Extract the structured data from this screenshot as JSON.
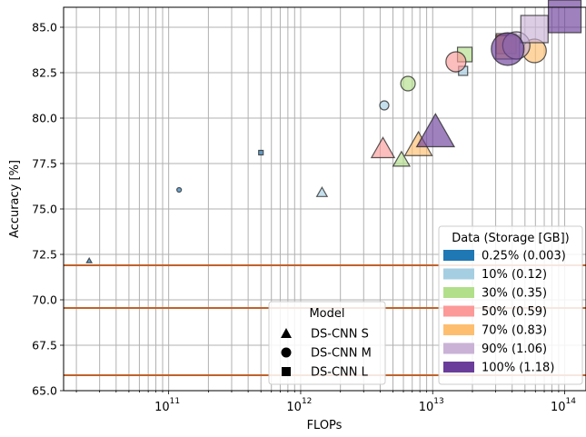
{
  "chart_data": {
    "type": "scatter",
    "x_scale": "log",
    "xlabel": "FLOPs",
    "ylabel": "Accuracy [%]",
    "xlim": [
      16000000000.0,
      145000000000000.0
    ],
    "ylim": [
      65.0,
      86.1
    ],
    "grid": true,
    "x_ticks": [
      {
        "value": 100000000000.0,
        "base": "10",
        "exp": "11"
      },
      {
        "value": 1000000000000.0,
        "base": "10",
        "exp": "12"
      },
      {
        "value": 10000000000000.0,
        "base": "10",
        "exp": "13"
      },
      {
        "value": 100000000000000.0,
        "base": "10",
        "exp": "14"
      }
    ],
    "y_ticks": [
      {
        "value": 65.0,
        "label": "65.0"
      },
      {
        "value": 67.5,
        "label": "67.5"
      },
      {
        "value": 70.0,
        "label": "70.0"
      },
      {
        "value": 72.5,
        "label": "72.5"
      },
      {
        "value": 75.0,
        "label": "75.0"
      },
      {
        "value": 77.5,
        "label": "77.5"
      },
      {
        "value": 80.0,
        "label": "80.0"
      },
      {
        "value": 82.5,
        "label": "82.5"
      },
      {
        "value": 85.0,
        "label": "85.0"
      }
    ],
    "hlines": [
      71.9,
      69.55,
      65.85
    ],
    "hline_color": "#c0622a",
    "data_legend": {
      "title": "Data (Storage [GB])",
      "placement": "lower-right",
      "entries": [
        {
          "label": "0.25% (0.003)",
          "color": "#1f77b4"
        },
        {
          "label": "10% (0.12)",
          "color": "#a6cee3"
        },
        {
          "label": "30% (0.35)",
          "color": "#b2df8a"
        },
        {
          "label": "50% (0.59)",
          "color": "#fb9a99"
        },
        {
          "label": "70% (0.83)",
          "color": "#fdbf6f"
        },
        {
          "label": "90% (1.06)",
          "color": "#cab2d6"
        },
        {
          "label": "100% (1.18)",
          "color": "#6a3d9a"
        }
      ]
    },
    "model_legend": {
      "title": "Model",
      "placement": "lower-center",
      "entries": [
        {
          "label": "DS-CNN S",
          "marker": "triangle"
        },
        {
          "label": "DS-CNN M",
          "marker": "circle"
        },
        {
          "label": "DS-CNN L",
          "marker": "square"
        }
      ]
    },
    "points": [
      {
        "x": 25000000000.0,
        "y": 72.15,
        "model": "triangle",
        "data": 0
      },
      {
        "x": 120000000000.0,
        "y": 76.05,
        "model": "circle",
        "data": 0
      },
      {
        "x": 500000000000.0,
        "y": 78.1,
        "model": "square",
        "data": 0
      },
      {
        "x": 1450000000000.0,
        "y": 75.9,
        "model": "triangle",
        "data": 1
      },
      {
        "x": 4300000000000.0,
        "y": 80.7,
        "model": "circle",
        "data": 1
      },
      {
        "x": 17000000000000.0,
        "y": 82.6,
        "model": "square",
        "data": 1
      },
      {
        "x": 5800000000000.0,
        "y": 77.7,
        "model": "triangle",
        "data": 2
      },
      {
        "x": 6500000000000.0,
        "y": 81.9,
        "model": "circle",
        "data": 2
      },
      {
        "x": 17500000000000.0,
        "y": 83.5,
        "model": "square",
        "data": 2
      },
      {
        "x": 4200000000000.0,
        "y": 78.3,
        "model": "triangle",
        "data": 3
      },
      {
        "x": 15000000000000.0,
        "y": 83.1,
        "model": "circle",
        "data": 3
      },
      {
        "x": 36000000000000.0,
        "y": 84.1,
        "model": "square",
        "data": 3
      },
      {
        "x": 7800000000000.0,
        "y": 78.5,
        "model": "triangle",
        "data": 4
      },
      {
        "x": 59000000000000.0,
        "y": 83.7,
        "model": "circle",
        "data": 4
      },
      {
        "x": 37000000000000.0,
        "y": 83.9,
        "model": "square",
        "data": 4
      },
      {
        "x": 43000000000000.0,
        "y": 84.0,
        "model": "circle",
        "data": 5
      },
      {
        "x": 59000000000000.0,
        "y": 84.9,
        "model": "square",
        "data": 5
      },
      {
        "x": 10500000000000.0,
        "y": 79.2,
        "model": "triangle",
        "data": 6
      },
      {
        "x": 37000000000000.0,
        "y": 83.8,
        "model": "circle",
        "data": 6
      },
      {
        "x": 100000000000000.0,
        "y": 85.6,
        "model": "square",
        "data": 6
      }
    ]
  }
}
